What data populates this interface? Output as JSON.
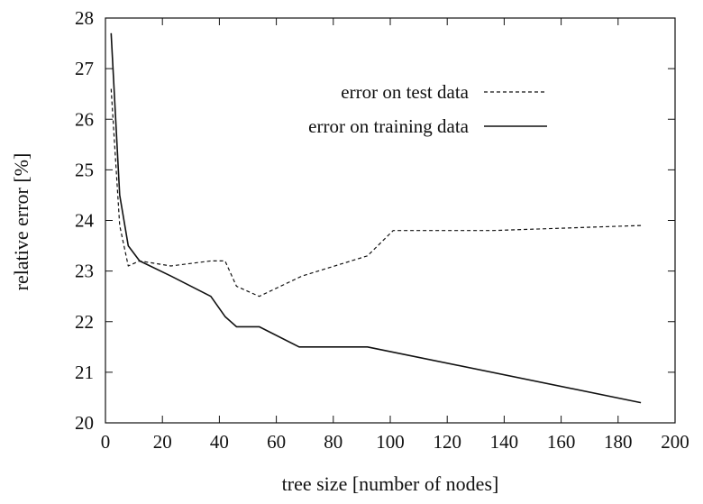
{
  "chart_data": {
    "type": "line",
    "title": "",
    "xlabel": "tree size [number of nodes]",
    "ylabel": "relative error [%]",
    "xlim": [
      0,
      200
    ],
    "ylim": [
      20,
      28
    ],
    "xticks": [
      0,
      20,
      40,
      60,
      80,
      100,
      120,
      140,
      160,
      180,
      200
    ],
    "yticks": [
      20,
      21,
      22,
      23,
      24,
      25,
      26,
      27,
      28
    ],
    "grid": false,
    "legend_position": "top-right",
    "series": [
      {
        "name": "error on test data",
        "style": "dashed",
        "color": "#111111",
        "x": [
          2,
          5,
          8,
          12,
          23,
          37,
          42,
          46,
          54,
          69,
          92,
          101,
          136,
          188
        ],
        "y": [
          26.6,
          23.9,
          23.1,
          23.2,
          23.1,
          23.2,
          23.2,
          22.7,
          22.5,
          22.9,
          23.3,
          23.8,
          23.8,
          23.9
        ]
      },
      {
        "name": "error on training data",
        "style": "solid",
        "color": "#111111",
        "x": [
          2,
          5,
          8,
          12,
          23,
          37,
          42,
          46,
          54,
          68,
          92,
          188
        ],
        "y": [
          27.7,
          24.5,
          23.5,
          23.2,
          22.9,
          22.5,
          22.1,
          21.9,
          21.9,
          21.5,
          21.5,
          20.4
        ]
      }
    ]
  }
}
